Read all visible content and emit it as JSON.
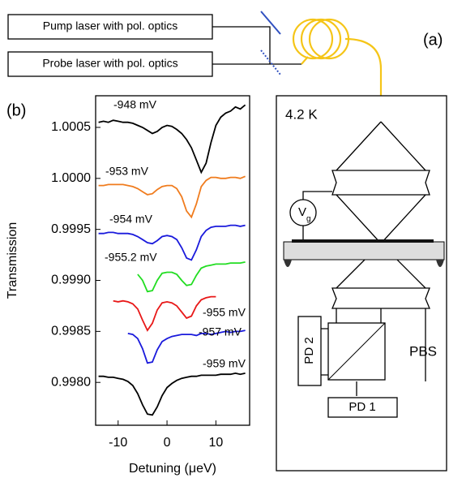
{
  "chart_data": {
    "type": "line",
    "panel_label": "(b)",
    "x_label": "Detuning (μeV)",
    "y_label": "Transmission",
    "xlim": [
      -14.6,
      16.9
    ],
    "ylim": [
      0.99758,
      1.00081
    ],
    "xticks": [
      -10,
      0,
      10
    ],
    "yticks": [
      1.0005,
      {
        "value": 1,
        "label": "1.0000"
      },
      0.9995,
      {
        "value": 0.999,
        "label": "0.9990"
      },
      0.9985,
      {
        "value": 0.998,
        "label": "0.9980"
      }
    ],
    "x": [
      -14,
      -13,
      -12,
      -11,
      -10,
      -9,
      -8,
      -7,
      -6,
      -5,
      -4,
      -3,
      -2,
      -1,
      0,
      1,
      2,
      3,
      4,
      5,
      6,
      7,
      8,
      9,
      10,
      11,
      12,
      13,
      14,
      15,
      16
    ],
    "series": [
      {
        "name": "-948 mV",
        "color": "#000000",
        "values": [
          1.00055,
          1.00056,
          1.00055,
          1.00057,
          1.00056,
          1.00055,
          1.00055,
          1.00054,
          1.00052,
          1.0005,
          1.00047,
          1.00044,
          1.00046,
          1.0005,
          1.00052,
          1.00051,
          1.00048,
          1.00044,
          1.00038,
          1.0003,
          1.00018,
          1.00006,
          1.00015,
          1.00035,
          1.00052,
          1.0006,
          1.00064,
          1.00066,
          1.0007,
          1.00068,
          1.00072
        ]
      },
      {
        "name": "-953 mV",
        "color": "#f07c1e",
        "values": [
          0.99993,
          0.99993,
          0.99994,
          0.99994,
          0.99994,
          0.99994,
          0.99993,
          0.99992,
          0.9999,
          0.99987,
          0.99984,
          0.99985,
          0.99989,
          0.99992,
          0.99993,
          0.99993,
          0.9999,
          0.99982,
          0.99968,
          0.99962,
          0.99975,
          0.99992,
          0.99998,
          1.00001,
          1.00001,
          1.0,
          1.0,
          1.00001,
          1.00001,
          1.0,
          1.00002
        ]
      },
      {
        "name": "-954 mV",
        "color": "#1a1adc",
        "values": [
          0.99946,
          0.99946,
          0.99947,
          0.99947,
          0.99946,
          0.99946,
          0.99946,
          0.99945,
          0.99943,
          0.9994,
          0.99937,
          0.99936,
          0.99939,
          0.99943,
          0.99944,
          0.99943,
          0.9994,
          0.99932,
          0.99922,
          0.9992,
          0.9993,
          0.99943,
          0.99949,
          0.99952,
          0.99953,
          0.99953,
          0.99953,
          0.99954,
          0.99954,
          0.99953,
          0.99954
        ]
      },
      {
        "name": "-955.2 mV",
        "color": "#22dd22",
        "values": [
          null,
          null,
          null,
          null,
          null,
          null,
          null,
          null,
          0.99906,
          0.999,
          0.99889,
          0.9989,
          0.999,
          0.99907,
          0.99908,
          0.99908,
          0.99906,
          0.999,
          0.99895,
          0.99896,
          0.99905,
          0.99912,
          0.99914,
          0.99915,
          0.99916,
          0.99916,
          0.99916,
          0.99917,
          0.99917,
          0.99917,
          0.99918
        ]
      },
      {
        "name": "-955 mV",
        "color": "#e81818",
        "values": [
          null,
          null,
          null,
          0.9988,
          0.99879,
          0.9988,
          0.99879,
          0.99877,
          0.99872,
          0.99861,
          0.99851,
          0.99858,
          0.99871,
          0.99878,
          0.99879,
          0.99878,
          0.99875,
          0.99869,
          0.99863,
          0.99865,
          0.99875,
          0.99881,
          0.99883,
          0.99884,
          0.99884,
          null,
          null,
          null,
          null,
          null,
          null
        ]
      },
      {
        "name": "-957 mV",
        "color": "#1a1adc",
        "values": [
          null,
          null,
          null,
          null,
          null,
          null,
          0.99848,
          0.99847,
          0.99843,
          0.99833,
          0.99819,
          0.9982,
          0.99832,
          0.9984,
          0.99843,
          0.99845,
          0.99846,
          0.99847,
          0.99847,
          0.99847,
          0.99846,
          0.99848,
          0.99848,
          0.99847,
          0.99848,
          0.99849,
          0.9985,
          0.99849,
          0.9985,
          0.9985,
          0.99851
        ]
      },
      {
        "name": "-959 mV",
        "color": "#000000",
        "values": [
          0.99806,
          0.99806,
          0.99805,
          0.99805,
          0.99804,
          0.99803,
          0.99801,
          0.99797,
          0.99789,
          0.99778,
          0.99769,
          0.99768,
          0.99776,
          0.99787,
          0.99795,
          0.99799,
          0.99802,
          0.99804,
          0.99805,
          0.99806,
          0.99806,
          0.99807,
          0.99807,
          0.99807,
          0.99807,
          0.99808,
          0.99808,
          0.99808,
          0.99809,
          0.99808,
          0.99809
        ]
      }
    ]
  },
  "diagram": {
    "panel_label": "(a)",
    "pump": "Pump laser with pol. optics",
    "probe": "Probe laser with pol. optics",
    "temperature": "4.2 K",
    "gate": "V",
    "gate_sub": "g",
    "pbs": "PBS",
    "pd2": "PD 2",
    "pd1": "PD 1"
  }
}
